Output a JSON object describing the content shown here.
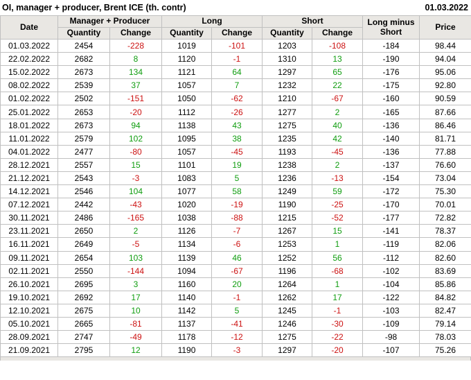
{
  "title_bar": {
    "title": "OI, manager + producer, Brent ICE (th. contr)",
    "date": "01.03.2022"
  },
  "table": {
    "header": {
      "date": "Date",
      "manager_producer": "Manager + Producer",
      "long": "Long",
      "short": "Short",
      "quantity": "Quantity",
      "change": "Change",
      "long_minus_short": "Long minus Short",
      "price": "Price"
    },
    "columns": [
      "date",
      "mp-quantity",
      "mp-change",
      "long-quantity",
      "long-change",
      "short-quantity",
      "short-change",
      "long-minus-short",
      "price"
    ],
    "change_column_indexes": [
      2,
      4,
      6
    ],
    "rows": [
      [
        "01.03.2022",
        "2454",
        "-228",
        "1019",
        "-101",
        "1203",
        "-108",
        "-184",
        "98.44"
      ],
      [
        "22.02.2022",
        "2682",
        "8",
        "1120",
        "-1",
        "1310",
        "13",
        "-190",
        "94.04"
      ],
      [
        "15.02.2022",
        "2673",
        "134",
        "1121",
        "64",
        "1297",
        "65",
        "-176",
        "95.06"
      ],
      [
        "08.02.2022",
        "2539",
        "37",
        "1057",
        "7",
        "1232",
        "22",
        "-175",
        "92.80"
      ],
      [
        "01.02.2022",
        "2502",
        "-151",
        "1050",
        "-62",
        "1210",
        "-67",
        "-160",
        "90.59"
      ],
      [
        "25.01.2022",
        "2653",
        "-20",
        "1112",
        "-26",
        "1277",
        "2",
        "-165",
        "87.66"
      ],
      [
        "18.01.2022",
        "2673",
        "94",
        "1138",
        "43",
        "1275",
        "40",
        "-136",
        "86.46"
      ],
      [
        "11.01.2022",
        "2579",
        "102",
        "1095",
        "38",
        "1235",
        "42",
        "-140",
        "81.71"
      ],
      [
        "04.01.2022",
        "2477",
        "-80",
        "1057",
        "-45",
        "1193",
        "-45",
        "-136",
        "77.88"
      ],
      [
        "28.12.2021",
        "2557",
        "15",
        "1101",
        "19",
        "1238",
        "2",
        "-137",
        "76.60"
      ],
      [
        "21.12.2021",
        "2543",
        "-3",
        "1083",
        "5",
        "1236",
        "-13",
        "-154",
        "73.04"
      ],
      [
        "14.12.2021",
        "2546",
        "104",
        "1077",
        "58",
        "1249",
        "59",
        "-172",
        "75.30"
      ],
      [
        "07.12.2021",
        "2442",
        "-43",
        "1020",
        "-19",
        "1190",
        "-25",
        "-170",
        "70.01"
      ],
      [
        "30.11.2021",
        "2486",
        "-165",
        "1038",
        "-88",
        "1215",
        "-52",
        "-177",
        "72.82"
      ],
      [
        "23.11.2021",
        "2650",
        "2",
        "1126",
        "-7",
        "1267",
        "15",
        "-141",
        "78.37"
      ],
      [
        "16.11.2021",
        "2649",
        "-5",
        "1134",
        "-6",
        "1253",
        "1",
        "-119",
        "82.06"
      ],
      [
        "09.11.2021",
        "2654",
        "103",
        "1139",
        "46",
        "1252",
        "56",
        "-112",
        "82.60"
      ],
      [
        "02.11.2021",
        "2550",
        "-144",
        "1094",
        "-67",
        "1196",
        "-68",
        "-102",
        "83.69"
      ],
      [
        "26.10.2021",
        "2695",
        "3",
        "1160",
        "20",
        "1264",
        "1",
        "-104",
        "85.86"
      ],
      [
        "19.10.2021",
        "2692",
        "17",
        "1140",
        "-1",
        "1262",
        "17",
        "-122",
        "84.82"
      ],
      [
        "12.10.2021",
        "2675",
        "10",
        "1142",
        "5",
        "1245",
        "-1",
        "-103",
        "82.47"
      ],
      [
        "05.10.2021",
        "2665",
        "-81",
        "1137",
        "-41",
        "1246",
        "-30",
        "-109",
        "79.14"
      ],
      [
        "28.09.2021",
        "2747",
        "-49",
        "1178",
        "-12",
        "1275",
        "-22",
        "-98",
        "78.03"
      ],
      [
        "21.09.2021",
        "2795",
        "12",
        "1190",
        "-3",
        "1297",
        "-20",
        "-107",
        "75.26"
      ]
    ]
  },
  "colors": {
    "positive_change": "#0f9d0f",
    "negative_change": "#cc1111",
    "header_background": "#e9e7e3",
    "grid_border": "#c0c0c0"
  }
}
